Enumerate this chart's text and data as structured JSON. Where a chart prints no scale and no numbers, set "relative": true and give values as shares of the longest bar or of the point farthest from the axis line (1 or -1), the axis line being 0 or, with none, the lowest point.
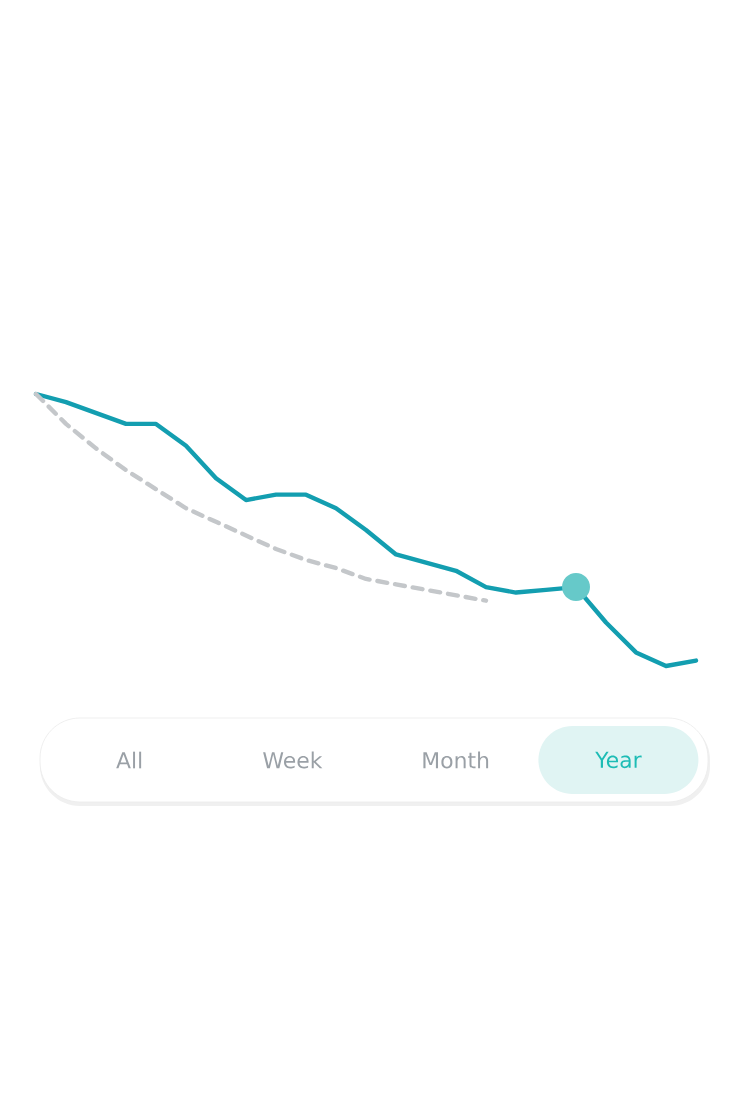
{
  "chart_data": {
    "type": "line",
    "relative": true,
    "categories": [
      null,
      null,
      null,
      null,
      null,
      null,
      null,
      null,
      null,
      null,
      null,
      null,
      null,
      null,
      null,
      null,
      null,
      null,
      null,
      null,
      null,
      null,
      null
    ],
    "series": [
      {
        "color": "#139eb0",
        "line_style": "solid",
        "values": [
          1.0,
          0.97,
          0.93,
          0.89,
          0.89,
          0.81,
          0.69,
          0.61,
          0.63,
          0.63,
          0.58,
          0.5,
          0.41,
          0.38,
          0.35,
          0.29,
          0.27,
          0.28,
          0.29,
          0.16,
          0.05,
          0.0,
          0.02
        ]
      },
      {
        "color": "#c4c7ca",
        "line_style": "dashed",
        "values": [
          1.0,
          0.89,
          0.8,
          0.72,
          0.65,
          0.58,
          0.53,
          0.48,
          0.43,
          0.39,
          0.36,
          0.32,
          0.3,
          0.28,
          0.26,
          0.24,
          null,
          null,
          null,
          null,
          null,
          null,
          null
        ]
      }
    ],
    "annotations": [
      "All",
      "Week",
      "Month",
      "Year"
    ]
  }
}
